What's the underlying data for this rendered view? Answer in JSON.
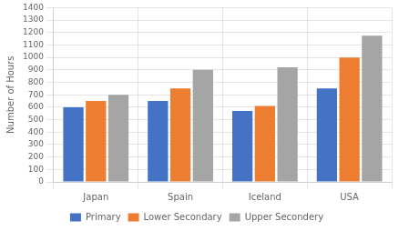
{
  "chart_data": {
    "type": "bar",
    "categories": [
      "Japan",
      "Spain",
      "Iceland",
      "USA"
    ],
    "series": [
      {
        "name": "Primary",
        "color": "#4472c4",
        "values": [
          600,
          650,
          570,
          750
        ]
      },
      {
        "name": "Lower Secondary",
        "color": "#ed7d31",
        "values": [
          650,
          750,
          610,
          1000
        ]
      },
      {
        "name": "Upper Secondery",
        "color": "#a5a5a5",
        "values": [
          700,
          900,
          920,
          1175
        ]
      }
    ],
    "ylabel": "Number of Hours",
    "ylim": [
      0,
      1400
    ],
    "yticks": [
      0,
      100,
      200,
      300,
      400,
      500,
      600,
      700,
      800,
      900,
      1000,
      1100,
      1200,
      1300,
      1400
    ],
    "grid": true,
    "legend": "bottom"
  }
}
